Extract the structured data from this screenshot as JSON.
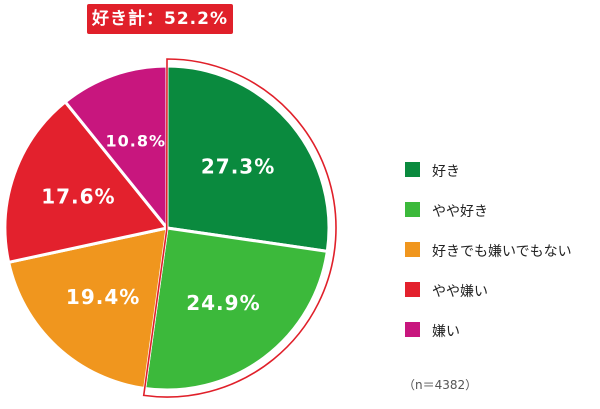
{
  "callout": {
    "text": "好き計：52.2%"
  },
  "chart_data": {
    "type": "pie",
    "start": "12 o'clock, clockwise",
    "slices": [
      {
        "label": "好き",
        "value": 27.3,
        "value_label": "27.3%",
        "color": "#0a8a3e"
      },
      {
        "label": "やや好き",
        "value": 24.9,
        "value_label": "24.9%",
        "color": "#3cb93b"
      },
      {
        "label": "好きでも嫌いでもない",
        "value": 19.4,
        "value_label": "19.4%",
        "color": "#f0961e"
      },
      {
        "label": "やや嫌い",
        "value": 17.6,
        "value_label": "17.6%",
        "color": "#e3212d"
      },
      {
        "label": "嫌い",
        "value": 10.8,
        "value_label": "10.8%",
        "color": "#c8167e"
      }
    ],
    "highlight_group": {
      "slices": [
        "好き",
        "やや好き"
      ],
      "total_label": "好き計：52.2%",
      "outline_color": "#e0202a"
    },
    "legend_position": "right"
  },
  "note": "（n＝4382）"
}
